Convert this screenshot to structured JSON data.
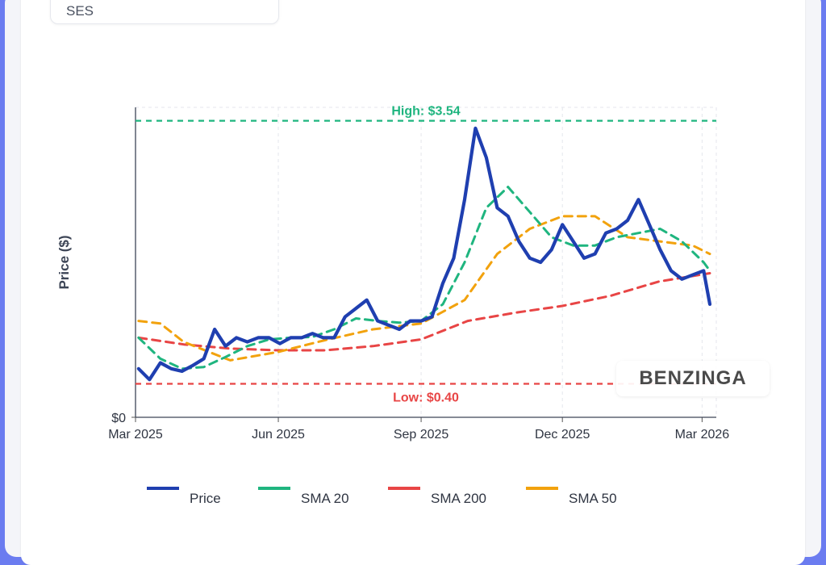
{
  "ticker": "SES",
  "watermark": "BENZINGA",
  "chart_data": {
    "type": "line",
    "xlabel": "",
    "ylabel": "Price ($)",
    "x_ticks": [
      "Mar 2025",
      "Jun 2025",
      "Sep 2025",
      "Dec 2025",
      "Mar 2026"
    ],
    "y_ticks": [
      "$0"
    ],
    "ylim": [
      0,
      3.7
    ],
    "grid": true,
    "legend_position": "bottom",
    "annotations": {
      "high": {
        "label": "High: $3.54",
        "value": 3.54,
        "color": "#1fb57f"
      },
      "low": {
        "label": "Low: $0.40",
        "value": 0.4,
        "color": "#e84545"
      }
    },
    "series": [
      {
        "name": "Price",
        "color": "#1f3fb0",
        "dash": false,
        "x": [
          "2025-03-03",
          "2025-03-10",
          "2025-03-17",
          "2025-03-24",
          "2025-03-31",
          "2025-04-07",
          "2025-04-14",
          "2025-04-21",
          "2025-04-28",
          "2025-05-05",
          "2025-05-12",
          "2025-05-19",
          "2025-05-26",
          "2025-06-02",
          "2025-06-09",
          "2025-06-16",
          "2025-06-23",
          "2025-06-30",
          "2025-07-07",
          "2025-07-14",
          "2025-07-21",
          "2025-07-28",
          "2025-08-04",
          "2025-08-11",
          "2025-08-18",
          "2025-08-25",
          "2025-09-01",
          "2025-09-08",
          "2025-09-15",
          "2025-09-22",
          "2025-09-29",
          "2025-10-06",
          "2025-10-13",
          "2025-10-20",
          "2025-10-27",
          "2025-11-03",
          "2025-11-10",
          "2025-11-17",
          "2025-11-24",
          "2025-12-01",
          "2025-12-08",
          "2025-12-15",
          "2025-12-22",
          "2025-12-29",
          "2026-01-05",
          "2026-01-12",
          "2026-01-19",
          "2026-01-26",
          "2026-02-02",
          "2026-02-09",
          "2026-02-16",
          "2026-02-23",
          "2026-03-02",
          "2026-03-06"
        ],
        "values": [
          0.58,
          0.45,
          0.65,
          0.58,
          0.55,
          0.62,
          0.7,
          1.05,
          0.85,
          0.95,
          0.9,
          0.95,
          0.95,
          0.88,
          0.95,
          0.95,
          1.0,
          0.95,
          0.95,
          1.2,
          1.3,
          1.4,
          1.15,
          1.1,
          1.05,
          1.15,
          1.15,
          1.2,
          1.6,
          1.9,
          2.6,
          3.45,
          3.1,
          2.5,
          2.4,
          2.1,
          1.9,
          1.85,
          2.0,
          2.3,
          2.1,
          1.9,
          1.95,
          2.2,
          2.25,
          2.35,
          2.6,
          2.3,
          2.0,
          1.75,
          1.65,
          1.7,
          1.75,
          1.35
        ]
      },
      {
        "name": "SMA 20",
        "color": "#1fb57f",
        "dash": true,
        "x": [
          "2025-03-03",
          "2025-03-17",
          "2025-03-31",
          "2025-04-14",
          "2025-04-28",
          "2025-05-12",
          "2025-05-26",
          "2025-06-09",
          "2025-06-23",
          "2025-07-07",
          "2025-07-21",
          "2025-08-04",
          "2025-08-18",
          "2025-09-01",
          "2025-09-15",
          "2025-09-29",
          "2025-10-13",
          "2025-10-27",
          "2025-11-10",
          "2025-11-24",
          "2025-12-08",
          "2025-12-22",
          "2026-01-05",
          "2026-01-19",
          "2026-02-02",
          "2026-02-16",
          "2026-03-02",
          "2026-03-06"
        ],
        "values": [
          0.95,
          0.7,
          0.58,
          0.6,
          0.72,
          0.85,
          0.93,
          0.95,
          0.96,
          1.05,
          1.18,
          1.15,
          1.13,
          1.15,
          1.35,
          1.85,
          2.5,
          2.75,
          2.45,
          2.15,
          2.05,
          2.05,
          2.15,
          2.2,
          2.25,
          2.1,
          1.85,
          1.75
        ]
      },
      {
        "name": "SMA 200",
        "color": "#e84545",
        "dash": true,
        "x": [
          "2025-03-03",
          "2025-04-01",
          "2025-05-01",
          "2025-06-01",
          "2025-07-01",
          "2025-08-01",
          "2025-09-01",
          "2025-10-01",
          "2025-11-01",
          "2025-12-01",
          "2026-01-01",
          "2026-02-01",
          "2026-03-06"
        ],
        "values": [
          0.95,
          0.87,
          0.82,
          0.8,
          0.8,
          0.85,
          0.93,
          1.15,
          1.25,
          1.33,
          1.45,
          1.62,
          1.72
        ]
      },
      {
        "name": "SMA 50",
        "color": "#f2a20d",
        "dash": true,
        "x": [
          "2025-03-03",
          "2025-03-17",
          "2025-04-01",
          "2025-05-01",
          "2025-06-01",
          "2025-07-01",
          "2025-08-01",
          "2025-09-01",
          "2025-09-29",
          "2025-10-20",
          "2025-11-10",
          "2025-12-01",
          "2025-12-22",
          "2026-01-12",
          "2026-02-02",
          "2026-02-23",
          "2026-03-06"
        ],
        "values": [
          1.15,
          1.12,
          0.9,
          0.68,
          0.78,
          0.92,
          1.05,
          1.12,
          1.4,
          1.95,
          2.25,
          2.4,
          2.4,
          2.15,
          2.1,
          2.05,
          1.95
        ]
      }
    ]
  }
}
